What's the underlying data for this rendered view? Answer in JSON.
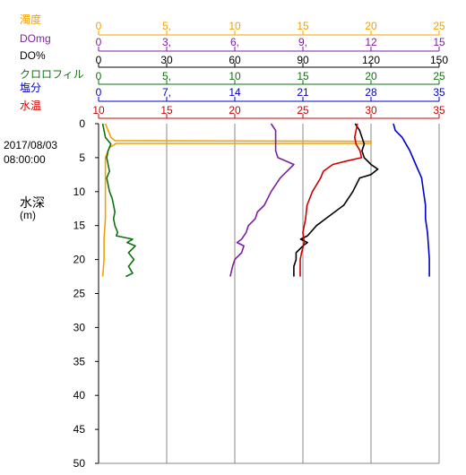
{
  "station": {
    "date": "2017/08/03",
    "time": "08:00:00"
  },
  "depth_axis": {
    "label": "水深",
    "unit": "(m)",
    "ticks": [
      "0",
      "5",
      "10",
      "15",
      "20",
      "25",
      "30",
      "35",
      "40",
      "45",
      "50"
    ]
  },
  "chart_data": {
    "type": "line",
    "orientation": "vertical-profile",
    "y_axis": {
      "name": "水深",
      "unit": "m",
      "range": [
        0,
        50
      ],
      "inverted": true
    },
    "grid": true,
    "series": [
      {
        "name": "濁度",
        "color": "#f4a000",
        "range": [
          0,
          25
        ],
        "ticks": [
          "0",
          "5,",
          "10",
          "15",
          "20",
          "25"
        ],
        "points": [
          [
            0.5,
            0
          ],
          [
            0.7,
            1
          ],
          [
            0.9,
            2
          ],
          [
            1.2,
            2.5
          ],
          [
            20,
            2.6
          ],
          [
            20,
            2.9
          ],
          [
            1.3,
            2.9
          ],
          [
            0.8,
            3.5
          ],
          [
            0.6,
            4.5
          ],
          [
            0.5,
            5
          ],
          [
            0.5,
            7
          ],
          [
            0.5,
            10
          ],
          [
            0.5,
            14
          ],
          [
            0.4,
            17
          ],
          [
            0.4,
            20
          ],
          [
            0.3,
            22.5
          ]
        ]
      },
      {
        "name": "DOmg",
        "color": "#7b1fa2",
        "range": [
          0,
          15
        ],
        "ticks": [
          "0",
          "3,",
          "6,",
          "9,",
          "12",
          "15"
        ],
        "points": [
          [
            7.6,
            0
          ],
          [
            7.8,
            1
          ],
          [
            7.8,
            2
          ],
          [
            7.8,
            3
          ],
          [
            7.8,
            4
          ],
          [
            7.9,
            5
          ],
          [
            8.6,
            6
          ],
          [
            8.3,
            7
          ],
          [
            8.0,
            8
          ],
          [
            7.6,
            10
          ],
          [
            7.3,
            12
          ],
          [
            7.0,
            13
          ],
          [
            6.9,
            14
          ],
          [
            6.6,
            15
          ],
          [
            6.5,
            16
          ],
          [
            6.3,
            17
          ],
          [
            6.1,
            17.5
          ],
          [
            6.4,
            18
          ],
          [
            6.3,
            19
          ],
          [
            6.0,
            20
          ],
          [
            5.9,
            21
          ],
          [
            5.8,
            22.5
          ]
        ]
      },
      {
        "name": "DO%",
        "color": "#000000",
        "range": [
          0,
          150
        ],
        "ticks": [
          "0",
          "30",
          "60",
          "90",
          "120",
          "150"
        ],
        "points": [
          [
            113,
            0
          ],
          [
            115,
            1
          ],
          [
            116,
            2
          ],
          [
            117,
            3
          ],
          [
            116,
            4
          ],
          [
            117,
            5
          ],
          [
            120,
            6
          ],
          [
            123,
            6.7
          ],
          [
            120,
            7.5
          ],
          [
            115,
            8
          ],
          [
            112,
            10
          ],
          [
            108,
            12
          ],
          [
            104,
            13
          ],
          [
            100,
            14
          ],
          [
            96,
            15
          ],
          [
            92,
            16.5
          ],
          [
            89,
            17
          ],
          [
            92,
            17.5
          ],
          [
            90,
            18
          ],
          [
            87,
            19
          ],
          [
            87,
            20
          ],
          [
            86,
            21
          ],
          [
            86,
            22.5
          ]
        ]
      },
      {
        "name": "クロロフィル",
        "color": "#107010",
        "range": [
          0,
          25
        ],
        "ticks": [
          "0",
          "5,",
          "10",
          "15",
          "20",
          "25"
        ],
        "points": [
          [
            0.3,
            0
          ],
          [
            0.5,
            2
          ],
          [
            0.9,
            3
          ],
          [
            0.7,
            4
          ],
          [
            0.6,
            5
          ],
          [
            0.8,
            7
          ],
          [
            0.6,
            8
          ],
          [
            0.8,
            10
          ],
          [
            1.0,
            11
          ],
          [
            1.2,
            13
          ],
          [
            1.1,
            14
          ],
          [
            1.2,
            15
          ],
          [
            1.4,
            16
          ],
          [
            1.3,
            16.5
          ],
          [
            2.5,
            17
          ],
          [
            2.1,
            17.5
          ],
          [
            2.7,
            18
          ],
          [
            2.2,
            19
          ],
          [
            2.6,
            20
          ],
          [
            2.2,
            21
          ],
          [
            2.5,
            22
          ],
          [
            2.0,
            22.5
          ]
        ]
      },
      {
        "name": "塩分",
        "color": "#0000cc",
        "range": [
          0,
          35
        ],
        "ticks": [
          "0",
          "7,",
          "14",
          "21",
          "28",
          "35"
        ],
        "points": [
          [
            30.3,
            0
          ],
          [
            30.5,
            1
          ],
          [
            31.2,
            2
          ],
          [
            32.0,
            4
          ],
          [
            32.6,
            6
          ],
          [
            33.2,
            8
          ],
          [
            33.4,
            10
          ],
          [
            33.6,
            12
          ],
          [
            33.6,
            14
          ],
          [
            33.8,
            16
          ],
          [
            33.9,
            18
          ],
          [
            34.0,
            20
          ],
          [
            34.0,
            22.5
          ]
        ]
      },
      {
        "name": "水温",
        "color": "#cc0000",
        "range": [
          10,
          35
        ],
        "ticks": [
          "10",
          "15",
          "20",
          "25",
          "30",
          "35"
        ],
        "points": [
          [
            29,
            0
          ],
          [
            28.9,
            1
          ],
          [
            28.8,
            2
          ],
          [
            28.9,
            3
          ],
          [
            29.2,
            4
          ],
          [
            29.3,
            5
          ],
          [
            28.2,
            5.5
          ],
          [
            27.2,
            6
          ],
          [
            26.5,
            7
          ],
          [
            26.3,
            8
          ],
          [
            26.0,
            9
          ],
          [
            25.7,
            10
          ],
          [
            25.5,
            11
          ],
          [
            25.3,
            12
          ],
          [
            25.2,
            14
          ],
          [
            25.0,
            16
          ],
          [
            25.1,
            17.5
          ],
          [
            24.9,
            19
          ],
          [
            24.8,
            20
          ],
          [
            24.8,
            22.5
          ]
        ]
      }
    ]
  }
}
